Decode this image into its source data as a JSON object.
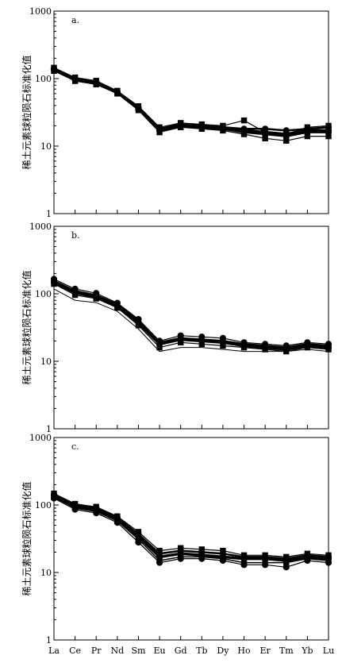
{
  "chart_data": [
    {
      "type": "line",
      "panel_label": "a.",
      "ylabel": "稀土元素球粒陨石标准化值",
      "xlabel": "",
      "yscale": "log",
      "ylim": [
        1,
        1000
      ],
      "yticks": [
        "1",
        "10",
        "100",
        "1000"
      ],
      "categories": [
        "La",
        "Ce",
        "Pr",
        "Nd",
        "Sm",
        "Eu",
        "Gd",
        "Tb",
        "Dy",
        "Ho",
        "Er",
        "Tm",
        "Yb",
        "Lu"
      ],
      "show_xtick_labels": false,
      "series": [
        {
          "values": [
            145,
            104,
            93,
            66,
            39,
            19,
            22,
            21,
            20,
            24,
            16,
            15,
            19,
            20
          ],
          "marker": "square",
          "stroke": 1.2
        },
        {
          "values": [
            140,
            100,
            90,
            64,
            37,
            18,
            21,
            20,
            19,
            18,
            18,
            17,
            18,
            19
          ],
          "marker": "circle",
          "stroke": 2.5
        },
        {
          "values": [
            135,
            96,
            86,
            62,
            35,
            17,
            20,
            19,
            18,
            16,
            15,
            14,
            16,
            16
          ],
          "marker": "circle",
          "stroke": 2.5
        },
        {
          "values": [
            130,
            92,
            82,
            60,
            34,
            16,
            19,
            18,
            17,
            15,
            13,
            12,
            14,
            14
          ],
          "marker": "square",
          "stroke": 1.2
        },
        {
          "values": [
            138,
            98,
            88,
            63,
            36,
            17,
            20,
            19,
            18,
            17,
            16,
            15,
            17,
            17
          ],
          "marker": "circle",
          "stroke": 3.5
        }
      ]
    },
    {
      "type": "line",
      "panel_label": "b.",
      "ylabel": "稀土元素球粒陨石标准化值",
      "xlabel": "",
      "yscale": "log",
      "ylim": [
        1,
        1000
      ],
      "yticks": [
        "1",
        "10",
        "100",
        "1000"
      ],
      "categories": [
        "La",
        "Ce",
        "Pr",
        "Nd",
        "Sm",
        "Eu",
        "Gd",
        "Tb",
        "Dy",
        "Ho",
        "Er",
        "Tm",
        "Yb",
        "Lu"
      ],
      "show_xtick_labels": false,
      "series": [
        {
          "values": [
            165,
            118,
            102,
            73,
            42,
            20,
            24,
            23,
            22,
            19,
            18,
            17,
            19,
            18
          ],
          "marker": "circle",
          "stroke": 1.2
        },
        {
          "values": [
            155,
            110,
            95,
            70,
            40,
            19,
            22,
            21,
            20,
            18,
            17,
            16,
            18,
            17
          ],
          "marker": "square",
          "stroke": 2.5
        },
        {
          "values": [
            148,
            104,
            90,
            66,
            37,
            18,
            21,
            20,
            19,
            17,
            16,
            15,
            17,
            16
          ],
          "marker": "circle",
          "stroke": 3.5
        },
        {
          "values": [
            140,
            96,
            85,
            62,
            34,
            16,
            19,
            18,
            17,
            16,
            15,
            14,
            16,
            15
          ],
          "marker": "square",
          "stroke": 1.2
        },
        {
          "values": [
            118,
            80,
            74,
            55,
            30,
            14,
            16,
            16,
            15,
            14,
            14,
            14,
            15,
            14
          ],
          "marker": "none",
          "stroke": 1
        }
      ]
    },
    {
      "type": "line",
      "panel_label": "c.",
      "ylabel": "稀土元素球粒陨石标准化值",
      "xlabel": "",
      "yscale": "log",
      "ylim": [
        1,
        1000
      ],
      "yticks": [
        "1",
        "10",
        "100",
        "1000"
      ],
      "categories": [
        "La",
        "Ce",
        "Pr",
        "Nd",
        "Sm",
        "Eu",
        "Gd",
        "Tb",
        "Dy",
        "Ho",
        "Er",
        "Tm",
        "Yb",
        "Lu"
      ],
      "show_xtick_labels": true,
      "series": [
        {
          "values": [
            148,
            104,
            94,
            68,
            40,
            21,
            23,
            22,
            21,
            18,
            18,
            17,
            19,
            18
          ],
          "marker": "square",
          "stroke": 1.2
        },
        {
          "values": [
            142,
            100,
            90,
            65,
            37,
            19,
            21,
            20,
            19,
            17,
            17,
            16,
            18,
            17
          ],
          "marker": "circle",
          "stroke": 2.5
        },
        {
          "values": [
            136,
            95,
            85,
            62,
            34,
            17,
            19,
            18,
            17,
            16,
            16,
            15,
            17,
            16
          ],
          "marker": "circle",
          "stroke": 3.5
        },
        {
          "values": [
            130,
            90,
            80,
            58,
            31,
            15,
            17,
            17,
            16,
            14,
            14,
            14,
            16,
            15
          ],
          "marker": "square",
          "stroke": 1.5
        },
        {
          "values": [
            126,
            86,
            76,
            55,
            28,
            14,
            16,
            16,
            15,
            13,
            13,
            12,
            15,
            14
          ],
          "marker": "circle",
          "stroke": 1.2
        }
      ]
    }
  ]
}
